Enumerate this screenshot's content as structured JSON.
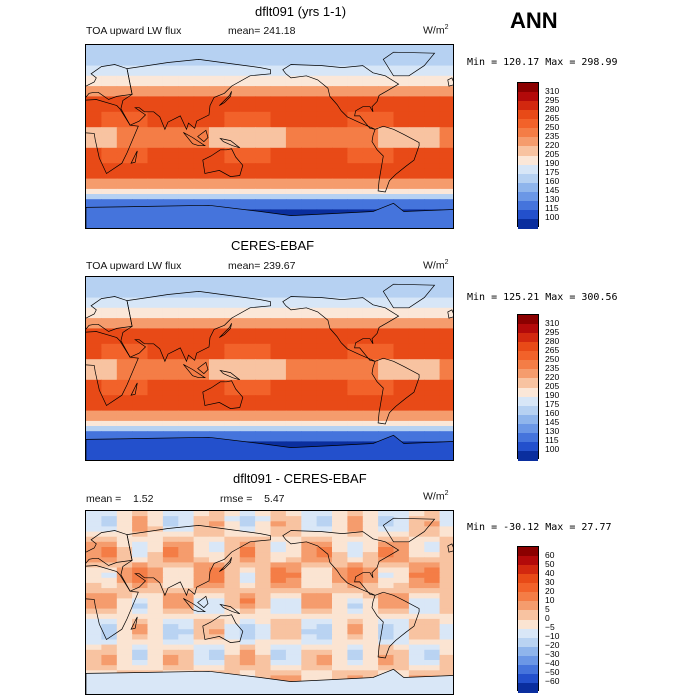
{
  "season": "ANN",
  "units_base": "W/m",
  "units_exp": "2",
  "panels": [
    {
      "title": "dflt091 (yrs 1-1)",
      "left_label": "TOA upward LW flux",
      "stat1_label": "mean=",
      "stat1_value": "241.18",
      "minmax": "Min = 120.17 Max = 298.99",
      "levels": [
        "310",
        "295",
        "280",
        "265",
        "250",
        "235",
        "220",
        "205",
        "190",
        "175",
        "160",
        "145",
        "130",
        "115",
        "100"
      ],
      "colors": [
        "#8b0000",
        "#b30a0a",
        "#d2280f",
        "#e84a17",
        "#f2622a",
        "#f47d46",
        "#f59c6d",
        "#f8c3a1",
        "#fbe7d8",
        "#d7e6f7",
        "#b6d1f2",
        "#8fb5ec",
        "#6b97e6",
        "#4574dc",
        "#2350cc",
        "#0a2e9e"
      ]
    },
    {
      "title": "CERES-EBAF",
      "left_label": "TOA upward LW flux",
      "stat1_label": "mean=",
      "stat1_value": "239.67",
      "minmax": "Min = 125.21 Max = 300.56",
      "levels": [
        "310",
        "295",
        "280",
        "265",
        "250",
        "235",
        "220",
        "205",
        "190",
        "175",
        "160",
        "145",
        "130",
        "115",
        "100"
      ],
      "colors": [
        "#8b0000",
        "#b30a0a",
        "#d2280f",
        "#e84a17",
        "#f2622a",
        "#f47d46",
        "#f59c6d",
        "#f8c3a1",
        "#fbe7d8",
        "#d7e6f7",
        "#b6d1f2",
        "#8fb5ec",
        "#6b97e6",
        "#4574dc",
        "#2350cc",
        "#0a2e9e"
      ]
    },
    {
      "title": "dflt091 - CERES-EBAF",
      "stat1_label": "mean =",
      "stat1_value": "1.52",
      "stat2_label": "rmse =",
      "stat2_value": "5.47",
      "minmax": "Min = -30.12 Max =   27.77",
      "levels": [
        "60",
        "50",
        "40",
        "30",
        "20",
        "10",
        "5",
        "0",
        "−5",
        "−10",
        "−20",
        "−30",
        "−40",
        "−50",
        "−60"
      ],
      "colors": [
        "#8b0000",
        "#b30a0a",
        "#d2280f",
        "#e84a17",
        "#f2622a",
        "#f47d46",
        "#f59c6d",
        "#f8c3a1",
        "#fbe4d2",
        "#d9e7f7",
        "#b9d3f2",
        "#8fb5ec",
        "#6b97e6",
        "#4574dc",
        "#2350cc",
        "#0a2e9e"
      ]
    }
  ]
}
